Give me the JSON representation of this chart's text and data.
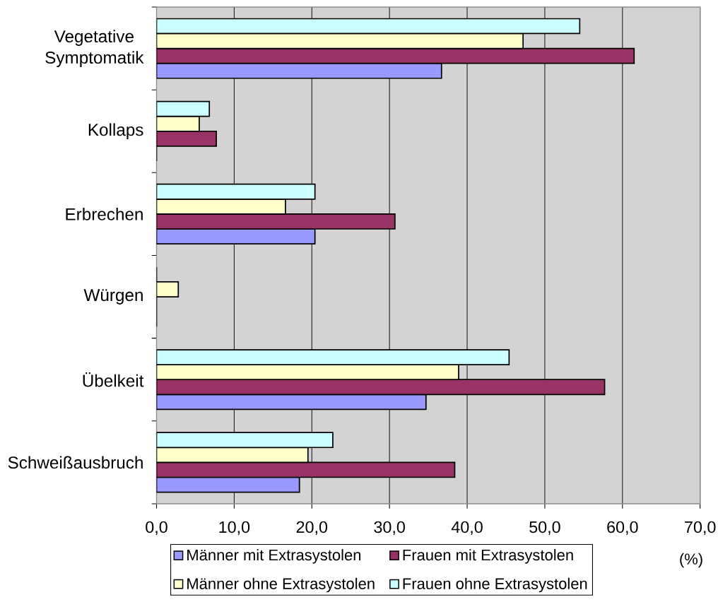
{
  "chart_data": {
    "type": "bar",
    "orientation": "horizontal",
    "categories": [
      "Vegetative Symptomatik",
      "Kollaps",
      "Erbrechen",
      "Würgen",
      "Übelkeit",
      "Schweißausbruch"
    ],
    "series": [
      {
        "name": "Männer mit Extrasystolen",
        "color": "#9999ff",
        "values": [
          36.7,
          0,
          20.4,
          0,
          34.7,
          18.4
        ]
      },
      {
        "name": "Frauen mit Extrasystolen",
        "color": "#993366",
        "values": [
          61.5,
          7.7,
          30.7,
          0,
          57.7,
          38.4
        ]
      },
      {
        "name": "Männer ohne Extrasystolen",
        "color": "#ffffcc",
        "values": [
          47.2,
          5.5,
          16.6,
          2.8,
          38.9,
          19.5
        ]
      },
      {
        "name": "Frauen ohne Extrasystolen",
        "color": "#ccffff",
        "values": [
          54.5,
          6.8,
          20.4,
          0,
          45.4,
          22.7
        ]
      }
    ],
    "xlabel": "(%)",
    "xlim": [
      0,
      70
    ],
    "xticks": [
      {
        "value": 0,
        "label": "0,0"
      },
      {
        "value": 10,
        "label": "10,0"
      },
      {
        "value": 20,
        "label": "20,0"
      },
      {
        "value": 30,
        "label": "30,0"
      },
      {
        "value": 40,
        "label": "40,0"
      },
      {
        "value": 50,
        "label": "50,0"
      },
      {
        "value": 60,
        "label": "60,0"
      },
      {
        "value": 70,
        "label": "70,0"
      }
    ],
    "grid": "x",
    "legend": "bottom"
  }
}
